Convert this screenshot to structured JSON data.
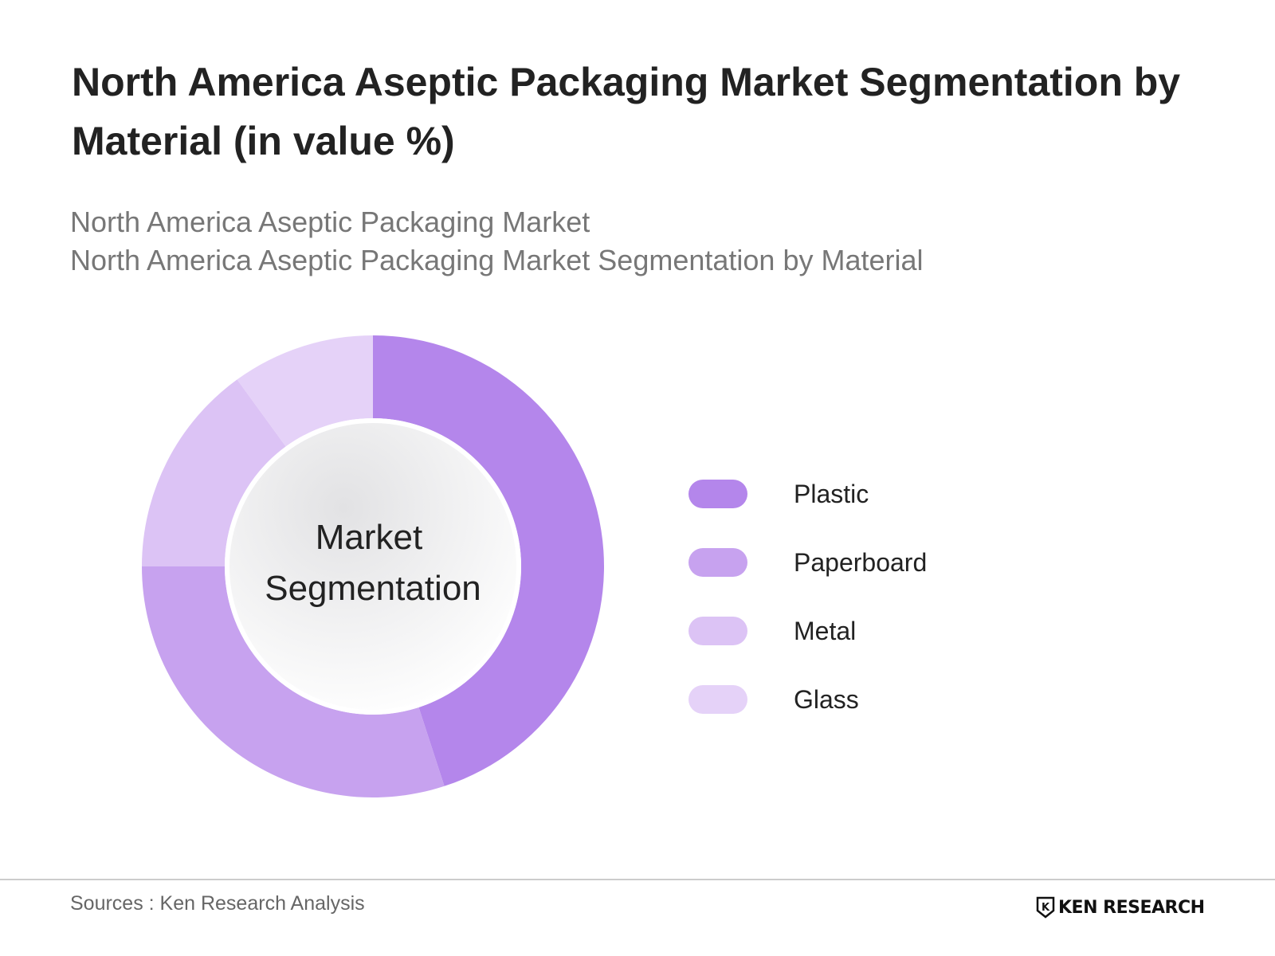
{
  "header": {
    "title": "North America Aseptic Packaging Market Segmentation by Material (in value %)",
    "subtitle_lines": [
      "North America Aseptic Packaging Market",
      "North America Aseptic Packaging Market Segmentation by Material"
    ]
  },
  "chart_data": {
    "type": "pie",
    "style": "donut",
    "title": "North America Aseptic Packaging Market Segmentation by Material (in value %)",
    "center_label": [
      "Market",
      "Segmentation"
    ],
    "categories": [
      "Plastic",
      "Paperboard",
      "Metal",
      "Glass"
    ],
    "values": [
      45,
      30,
      15,
      10
    ],
    "colors": [
      "#b486eb",
      "#c7a2ef",
      "#dcc3f5",
      "#e5d2f8"
    ],
    "legend": "right"
  },
  "footer": {
    "source": "Sources : Ken Research Analysis",
    "brand": "KEN RESEARCH",
    "brand_prefix": "K"
  }
}
